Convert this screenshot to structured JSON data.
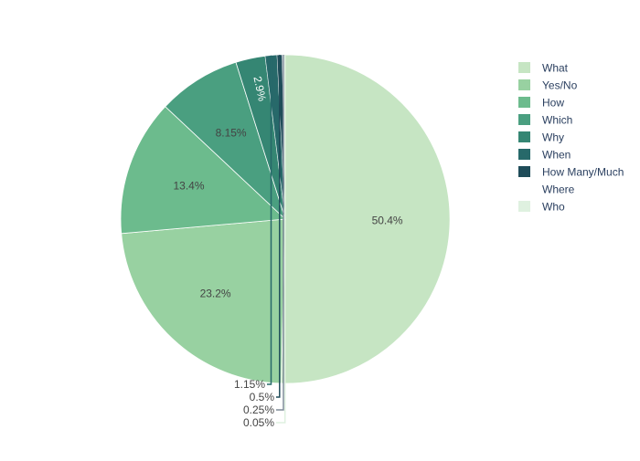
{
  "chart_data": {
    "type": "pie",
    "labels": [
      "What",
      "Yes/No",
      "How",
      "Which",
      "Why",
      "When",
      "How Many/Much",
      "Where",
      "Who"
    ],
    "values": [
      50.4,
      23.2,
      13.4,
      8.15,
      2.9,
      1.15,
      0.5,
      0.25,
      0.05
    ],
    "value_labels": [
      "50.4%",
      "23.2%",
      "13.4%",
      "8.15%",
      "2.9%",
      "1.15%",
      "0.5%",
      "0.25%",
      "0.05%"
    ],
    "colors": [
      "#c6e5c3",
      "#98d1a1",
      "#6cbb8d",
      "#4a9f80",
      "#358673",
      "#27696a",
      "#1f4c59",
      "#ffffff",
      "#dff1e0"
    ],
    "direction": "clockwise",
    "start_angle": "top",
    "legend_position": "right"
  }
}
